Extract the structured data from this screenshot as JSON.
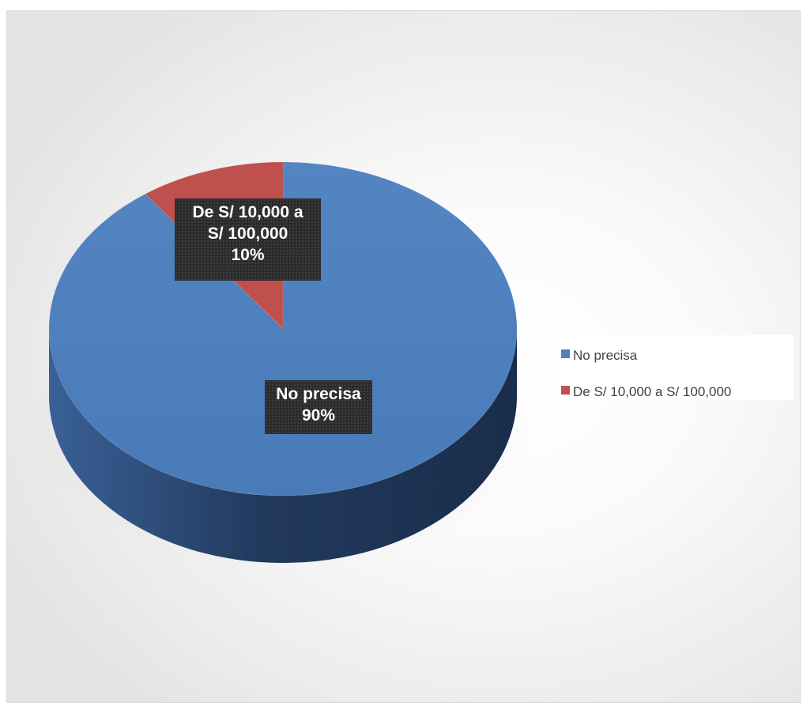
{
  "chart_data": {
    "type": "pie",
    "title": "",
    "slices": [
      {
        "label": "No precisa",
        "value": 90,
        "color": "#4f81bd",
        "data_label_lines": [
          "No precisa",
          "90%"
        ]
      },
      {
        "label": "De S/ 10,000  a S/ 100,000",
        "value": 10,
        "color": "#c0504d",
        "data_label_lines": [
          "De S/ 10,000  a",
          "S/ 100,000",
          "10%"
        ]
      }
    ],
    "style": "3d",
    "legend_position": "right"
  }
}
